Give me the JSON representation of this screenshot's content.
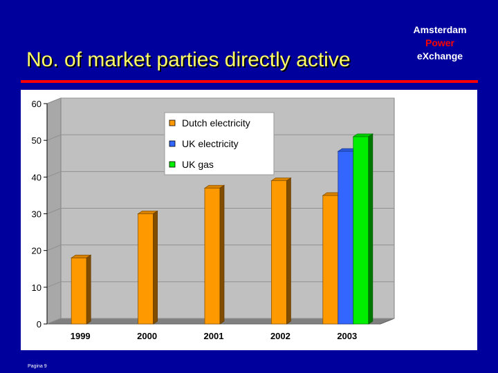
{
  "title": "No. of market parties directly active",
  "brand": {
    "line1": "Amsterdam",
    "line2": "Power",
    "line3": "eXchange"
  },
  "footer": "Pagina 9",
  "colors": {
    "background": "#00009c",
    "title": "#ffff66",
    "divider": "#ff0000",
    "brand_accent": "#ff0000"
  },
  "chart_data": {
    "type": "bar",
    "style": "3d-clustered",
    "categories": [
      "1999",
      "2000",
      "2001",
      "2002",
      "2003"
    ],
    "series": [
      {
        "name": "Dutch electricity",
        "color": "#ff9900",
        "values": [
          18,
          30,
          37,
          39,
          35
        ]
      },
      {
        "name": "UK electricity",
        "color": "#3366ff",
        "values": [
          null,
          null,
          null,
          null,
          47
        ]
      },
      {
        "name": "UK gas",
        "color": "#00ee00",
        "values": [
          null,
          null,
          null,
          null,
          51
        ]
      }
    ],
    "ylim": [
      0,
      60
    ],
    "yticks": [
      0,
      10,
      20,
      30,
      40,
      50,
      60
    ],
    "grid": true,
    "legend": "top-center"
  }
}
